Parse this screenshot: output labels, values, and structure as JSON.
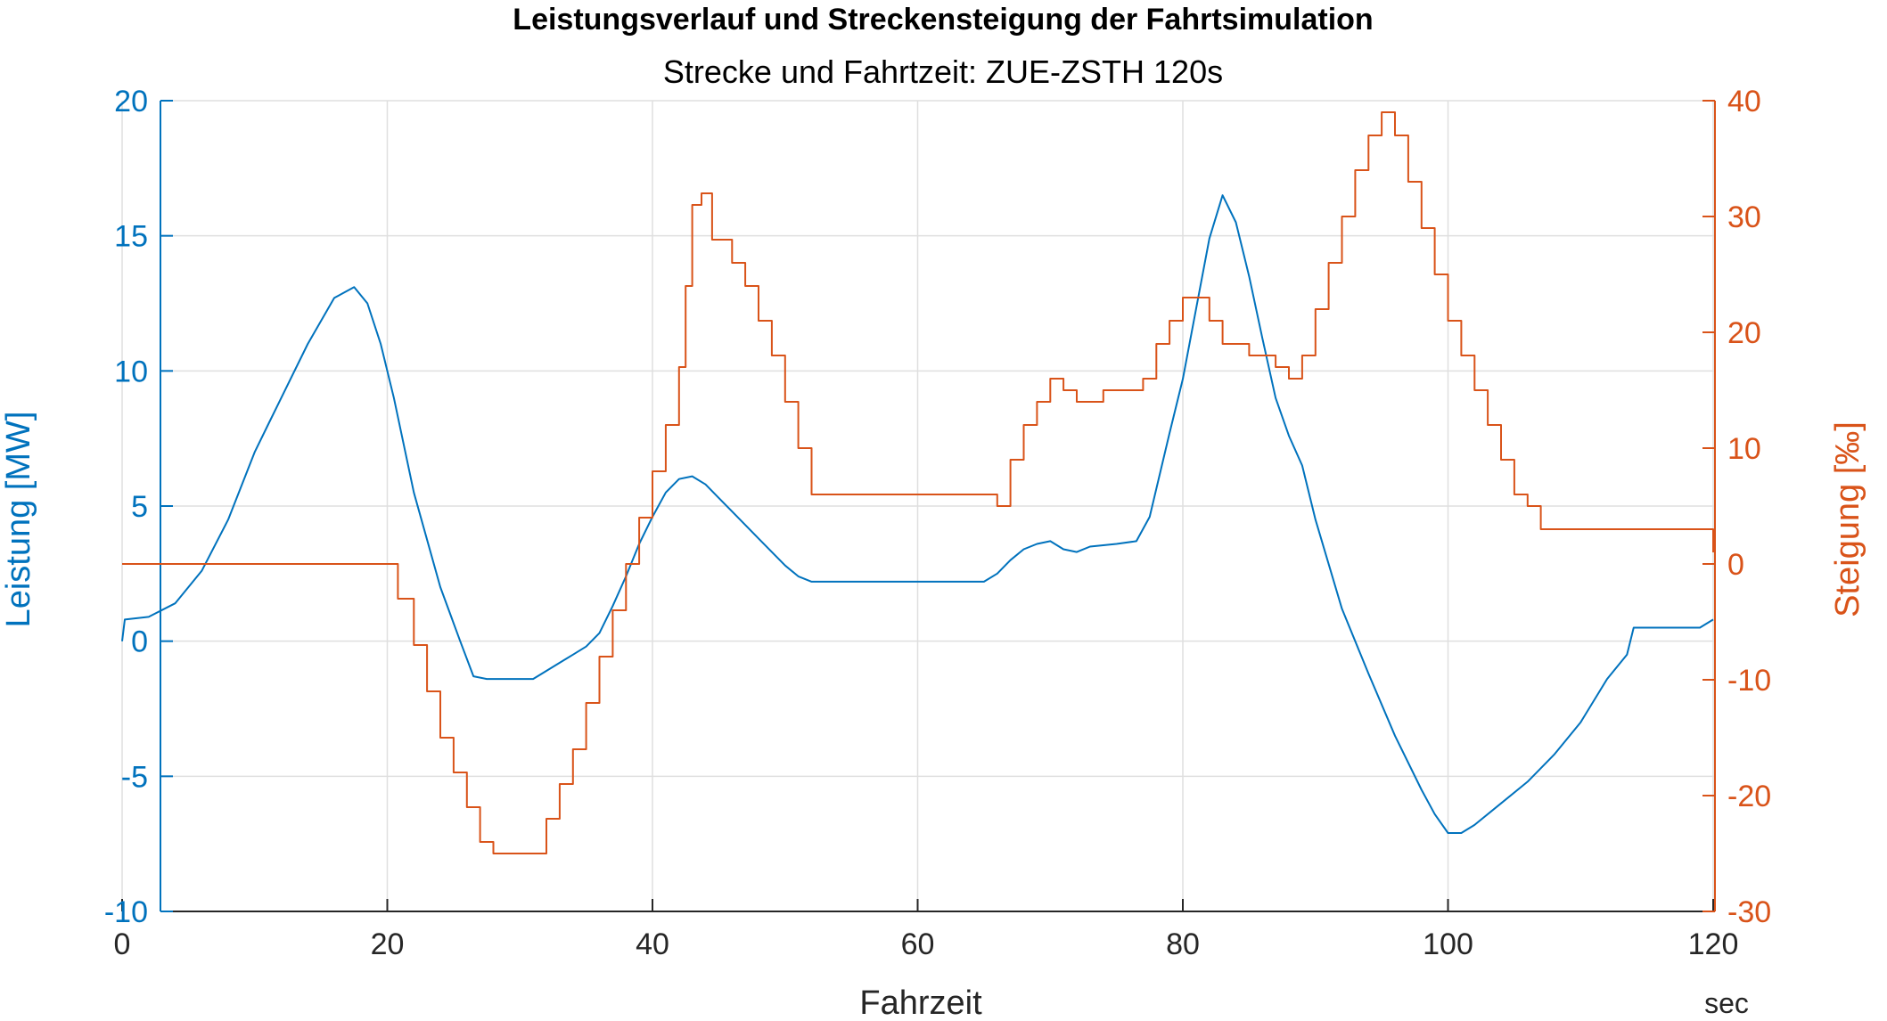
{
  "chart_data": {
    "type": "line",
    "title": "Leistungsverlauf und Streckensteigung der Fahrtsimulation",
    "subtitle": "Strecke und Fahrtzeit: ZUE-ZSTH 120s",
    "xlabel": "Fahrzeit",
    "x_unit": "sec",
    "ylabel_left": "Leistung [MW]",
    "ylabel_right": "Steigung [‰]",
    "xlim": [
      0,
      120
    ],
    "ylim_left": [
      -10,
      20
    ],
    "ylim_right": [
      -30,
      40
    ],
    "xticks": [
      0,
      20,
      40,
      60,
      80,
      100,
      120
    ],
    "yticks_left": [
      -10,
      -5,
      0,
      5,
      10,
      15,
      20
    ],
    "yticks_right": [
      -30,
      -20,
      -10,
      0,
      10,
      20,
      30,
      40
    ],
    "grid": true,
    "colors": {
      "left_axis": "#0072BD",
      "right_axis": "#D95319",
      "grid": "#dfdfdf",
      "axis": "#262626"
    },
    "series": [
      {
        "axis": "left",
        "color": "#0072BD",
        "x": [
          0,
          0.2,
          2,
          4,
          6,
          8,
          10,
          11,
          12,
          14,
          16,
          17.5,
          18.5,
          19.5,
          20.5,
          22,
          24,
          25.5,
          26.5,
          27.5,
          28,
          31,
          32,
          33,
          34,
          35,
          36,
          37,
          38,
          39,
          40,
          41,
          42,
          43,
          44,
          45,
          46,
          47,
          48,
          49,
          50,
          51,
          52,
          55,
          60,
          65,
          66,
          67,
          68,
          69,
          70,
          71,
          72,
          73,
          75,
          76.5,
          77.5,
          79,
          80,
          81,
          82,
          83,
          84,
          85,
          86,
          87,
          88,
          89,
          90,
          92,
          94,
          96,
          98,
          99,
          100,
          101,
          102,
          104,
          106,
          108,
          110,
          112,
          113.5,
          114,
          119,
          120
        ],
        "y": [
          0,
          0.8,
          0.9,
          1.4,
          2.6,
          4.5,
          7,
          8,
          9,
          11,
          12.7,
          13.1,
          12.5,
          11,
          9,
          5.5,
          2,
          0,
          -1.3,
          -1.4,
          -1.4,
          -1.4,
          -1.1,
          -0.8,
          -0.5,
          -0.2,
          0.3,
          1.3,
          2.4,
          3.6,
          4.6,
          5.5,
          6.0,
          6.1,
          5.8,
          5.3,
          4.8,
          4.3,
          3.8,
          3.3,
          2.8,
          2.4,
          2.2,
          2.2,
          2.2,
          2.2,
          2.5,
          3.0,
          3.4,
          3.6,
          3.7,
          3.4,
          3.3,
          3.5,
          3.6,
          3.7,
          4.6,
          7.7,
          9.7,
          12.3,
          14.9,
          16.5,
          15.5,
          13.5,
          11.2,
          9.0,
          7.6,
          6.5,
          4.5,
          1.2,
          -1.2,
          -3.5,
          -5.5,
          -6.4,
          -7.1,
          -7.1,
          -6.8,
          -6.0,
          -5.2,
          -4.2,
          -3.0,
          -1.4,
          -0.5,
          0.5,
          0.5,
          0.8
        ]
      },
      {
        "axis": "right",
        "color": "#D95319",
        "x": [
          0,
          19.2,
          20.8,
          22,
          23,
          24,
          25,
          26,
          27,
          28,
          30,
          31,
          32,
          33,
          34,
          35,
          36,
          37,
          38,
          39,
          40,
          41,
          42,
          42.5,
          43,
          43.7,
          44.5,
          46,
          47,
          48,
          49,
          50,
          51,
          52,
          60,
          65,
          66,
          67,
          68,
          69,
          70,
          71,
          72,
          73,
          74,
          76,
          77,
          78,
          79,
          80,
          81,
          82,
          83,
          85,
          87,
          88,
          89,
          90,
          91,
          92,
          93,
          94,
          95,
          96,
          97,
          98,
          99,
          100,
          101,
          102,
          103,
          104,
          105,
          106,
          107,
          116.5,
          120
        ],
        "y": [
          0,
          0,
          -3,
          -7,
          -11,
          -15,
          -18,
          -21,
          -24,
          -25,
          -25,
          -25,
          -22,
          -19,
          -16,
          -12,
          -8,
          -4,
          0,
          4,
          8,
          12,
          17,
          24,
          31,
          32,
          28,
          26,
          24,
          21,
          18,
          14,
          10,
          6,
          6,
          6,
          5,
          9,
          12,
          14,
          16,
          15,
          14,
          14,
          15,
          15,
          16,
          19,
          21,
          23,
          23,
          21,
          19,
          18,
          17,
          16,
          18,
          22,
          26,
          30,
          34,
          37,
          39,
          37,
          33,
          29,
          25,
          21,
          18,
          15,
          12,
          9,
          6,
          5,
          3,
          3,
          1
        ]
      }
    ]
  }
}
